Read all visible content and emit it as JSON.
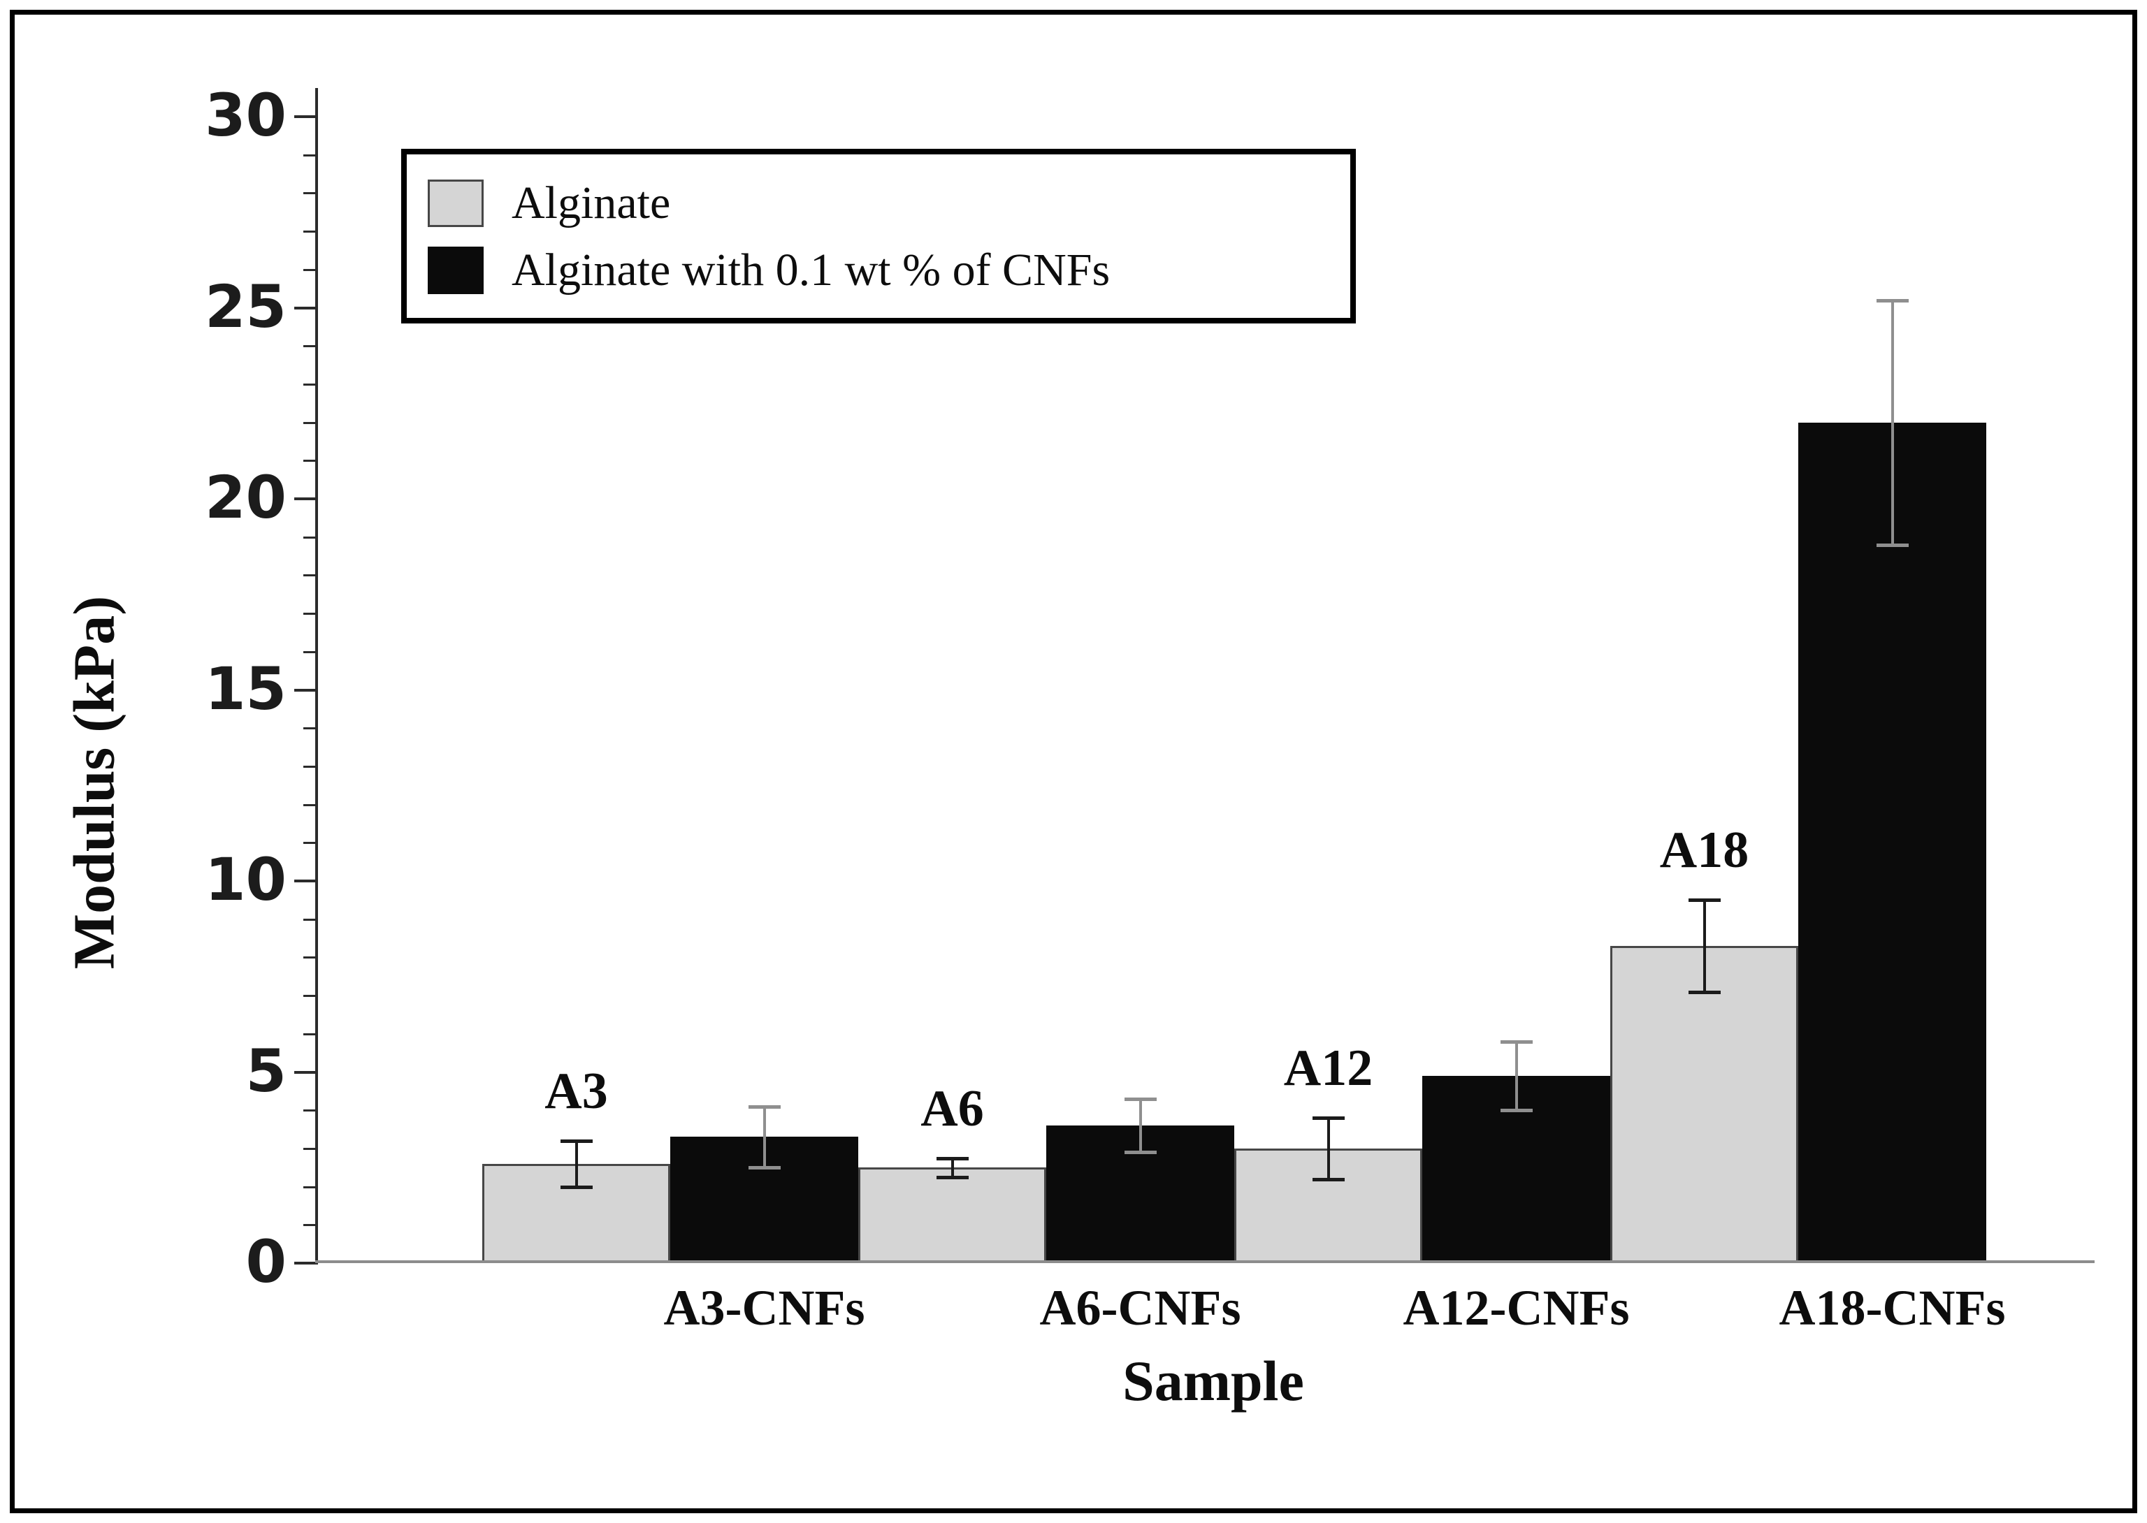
{
  "figure": {
    "background_color": "#ffffff",
    "frame_color": "#000000"
  },
  "legend": {
    "items": [
      {
        "label": "Alginate",
        "swatch_color": "#d5d5d5",
        "swatch_border": "#474747"
      },
      {
        "label": "Alginate with 0.1 wt % of CNFs",
        "swatch_color": "#0b0b0b",
        "swatch_border": "#0b0b0b"
      }
    ]
  },
  "chart_data": {
    "type": "bar",
    "title": "",
    "xlabel": "Sample",
    "ylabel": "Modulus (kPa)",
    "ylim": [
      0,
      30
    ],
    "y_major_ticks": [
      0,
      5,
      10,
      15,
      20,
      25,
      30
    ],
    "y_minor_step": 1,
    "grid": false,
    "legend_position": "top-left",
    "bar_layout": "contiguous-pairs",
    "categories": [
      "A3-CNFs",
      "A6-CNFs",
      "A12-CNFs",
      "A18-CNFs"
    ],
    "group_labels": [
      "A3",
      "A6",
      "A12",
      "A18"
    ],
    "series": [
      {
        "name": "Alginate",
        "color": "#d5d5d5",
        "error_bar_color": "#1b1b1b",
        "values": [
          2.6,
          2.5,
          3.0,
          8.3
        ],
        "errors": [
          0.6,
          0.25,
          0.8,
          1.2
        ]
      },
      {
        "name": "Alginate with 0.1 wt % of CNFs",
        "color": "#0b0b0b",
        "error_bar_color": "#8f8f8f",
        "values": [
          3.3,
          3.6,
          4.9,
          22.0
        ],
        "errors": [
          0.8,
          0.7,
          0.9,
          3.2
        ]
      }
    ]
  }
}
